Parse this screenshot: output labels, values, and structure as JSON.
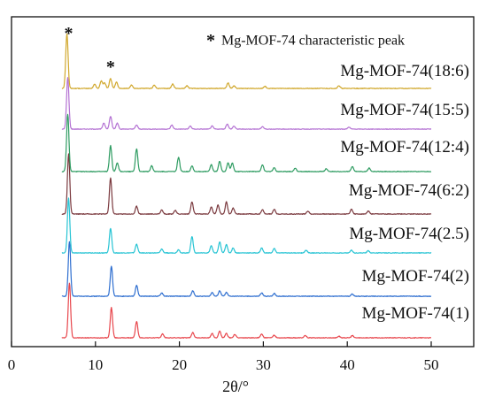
{
  "chart_data": {
    "type": "line",
    "title": "",
    "xlabel": "2θ/°",
    "ylabel": "",
    "xlim": [
      0,
      50
    ],
    "x_ticks": [
      0,
      10,
      20,
      30,
      40,
      50
    ],
    "x_tick_labels": [
      "0",
      "10",
      "20",
      "30",
      "40",
      "50"
    ],
    "legend": {
      "symbol": "*",
      "text": "Mg-MOF-74 characteristic peak",
      "placement": "top-right"
    },
    "peak_markers": [
      {
        "symbol": "*",
        "x": 6.8
      },
      {
        "symbol": "*",
        "x": 11.8
      }
    ],
    "series": [
      {
        "name": "Mg-MOF-74(1)",
        "color": "#e8474d",
        "peaks": [
          [
            6.9,
            1.0
          ],
          [
            11.9,
            0.55
          ],
          [
            14.9,
            0.3
          ],
          [
            18.0,
            0.07
          ],
          [
            21.6,
            0.1
          ],
          [
            23.9,
            0.08
          ],
          [
            24.8,
            0.12
          ],
          [
            25.6,
            0.08
          ],
          [
            26.6,
            0.06
          ],
          [
            29.8,
            0.07
          ],
          [
            31.3,
            0.05
          ],
          [
            35.0,
            0.04
          ],
          [
            39.0,
            0.03
          ],
          [
            40.6,
            0.04
          ]
        ]
      },
      {
        "name": "Mg-MOF-74(2)",
        "color": "#2f6fd0",
        "peaks": [
          [
            6.9,
            1.0
          ],
          [
            11.9,
            0.55
          ],
          [
            14.9,
            0.2
          ],
          [
            17.9,
            0.06
          ],
          [
            21.6,
            0.1
          ],
          [
            23.9,
            0.07
          ],
          [
            24.8,
            0.1
          ],
          [
            25.6,
            0.07
          ],
          [
            29.8,
            0.06
          ],
          [
            31.3,
            0.05
          ],
          [
            40.6,
            0.04
          ]
        ]
      },
      {
        "name": "Mg-MOF-74(2.5)",
        "color": "#27c4d4",
        "peaks": [
          [
            6.8,
            1.0
          ],
          [
            11.8,
            0.45
          ],
          [
            14.9,
            0.16
          ],
          [
            17.9,
            0.07
          ],
          [
            19.9,
            0.06
          ],
          [
            21.5,
            0.3
          ],
          [
            23.8,
            0.13
          ],
          [
            24.8,
            0.2
          ],
          [
            25.6,
            0.15
          ],
          [
            26.4,
            0.09
          ],
          [
            29.8,
            0.09
          ],
          [
            31.3,
            0.08
          ],
          [
            35.1,
            0.05
          ],
          [
            40.5,
            0.05
          ],
          [
            42.5,
            0.04
          ]
        ]
      },
      {
        "name": "Mg-MOF-74(6:2)",
        "color": "#7b3a3f",
        "peaks": [
          [
            6.8,
            1.0
          ],
          [
            11.8,
            0.6
          ],
          [
            14.9,
            0.13
          ],
          [
            17.9,
            0.07
          ],
          [
            19.5,
            0.06
          ],
          [
            21.5,
            0.2
          ],
          [
            23.8,
            0.12
          ],
          [
            24.6,
            0.15
          ],
          [
            25.6,
            0.2
          ],
          [
            26.4,
            0.1
          ],
          [
            29.9,
            0.07
          ],
          [
            31.3,
            0.08
          ],
          [
            35.3,
            0.05
          ],
          [
            40.5,
            0.08
          ],
          [
            42.5,
            0.05
          ]
        ]
      },
      {
        "name": "Mg-MOF-74(12:4)",
        "color": "#2f9c62",
        "peaks": [
          [
            6.7,
            1.0
          ],
          [
            11.8,
            0.45
          ],
          [
            12.6,
            0.15
          ],
          [
            14.9,
            0.4
          ],
          [
            16.7,
            0.1
          ],
          [
            19.9,
            0.25
          ],
          [
            21.5,
            0.1
          ],
          [
            23.8,
            0.12
          ],
          [
            24.8,
            0.18
          ],
          [
            25.8,
            0.15
          ],
          [
            26.3,
            0.15
          ],
          [
            29.9,
            0.12
          ],
          [
            31.3,
            0.07
          ],
          [
            33.8,
            0.06
          ],
          [
            37.5,
            0.05
          ],
          [
            40.6,
            0.09
          ],
          [
            42.6,
            0.06
          ]
        ]
      },
      {
        "name": "Mg-MOF-74(15:5)",
        "color": "#b472d3",
        "peaks": [
          [
            6.7,
            1.0
          ],
          [
            11.0,
            0.12
          ],
          [
            11.8,
            0.25
          ],
          [
            12.6,
            0.12
          ],
          [
            14.9,
            0.08
          ],
          [
            19.1,
            0.08
          ],
          [
            21.3,
            0.06
          ],
          [
            23.9,
            0.06
          ],
          [
            25.7,
            0.1
          ],
          [
            26.5,
            0.06
          ],
          [
            29.9,
            0.05
          ],
          [
            40.2,
            0.04
          ]
        ]
      },
      {
        "name": "Mg-MOF-74(18:6)",
        "color": "#d1a82d",
        "peaks": [
          [
            6.6,
            1.0
          ],
          [
            9.9,
            0.08
          ],
          [
            10.7,
            0.14
          ],
          [
            11.1,
            0.1
          ],
          [
            11.8,
            0.18
          ],
          [
            12.5,
            0.12
          ],
          [
            14.3,
            0.06
          ],
          [
            17.0,
            0.06
          ],
          [
            19.2,
            0.08
          ],
          [
            20.9,
            0.05
          ],
          [
            25.8,
            0.1
          ],
          [
            26.5,
            0.05
          ],
          [
            30.2,
            0.04
          ],
          [
            39.0,
            0.05
          ]
        ]
      }
    ]
  }
}
